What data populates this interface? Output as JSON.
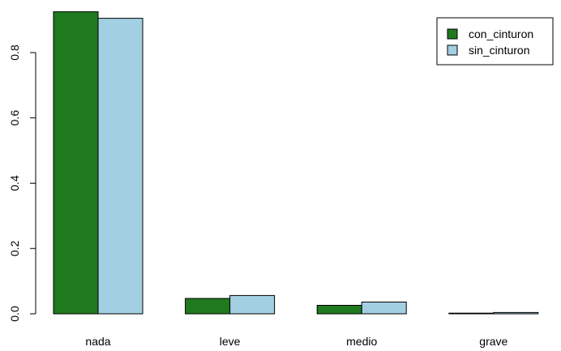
{
  "chart_data": {
    "type": "bar",
    "categories": [
      "nada",
      "leve",
      "medio",
      "grave"
    ],
    "series": [
      {
        "name": "con_cinturon",
        "values": [
          0.925,
          0.047,
          0.026,
          0.002
        ]
      },
      {
        "name": "sin_cinturon",
        "values": [
          0.905,
          0.056,
          0.036,
          0.004
        ]
      }
    ],
    "title": "",
    "xlabel": "",
    "ylabel": "",
    "ylim": [
      0,
      0.93
    ],
    "yticks": [
      "0.0",
      "0.2",
      "0.4",
      "0.6",
      "0.8"
    ],
    "ytick_values": [
      0,
      0.2,
      0.4,
      0.6,
      0.8
    ],
    "grid": false,
    "legend_position": "top-right",
    "colors": {
      "con_cinturon": "#1f7a1f",
      "sin_cinturon": "#a2d0e2"
    }
  }
}
